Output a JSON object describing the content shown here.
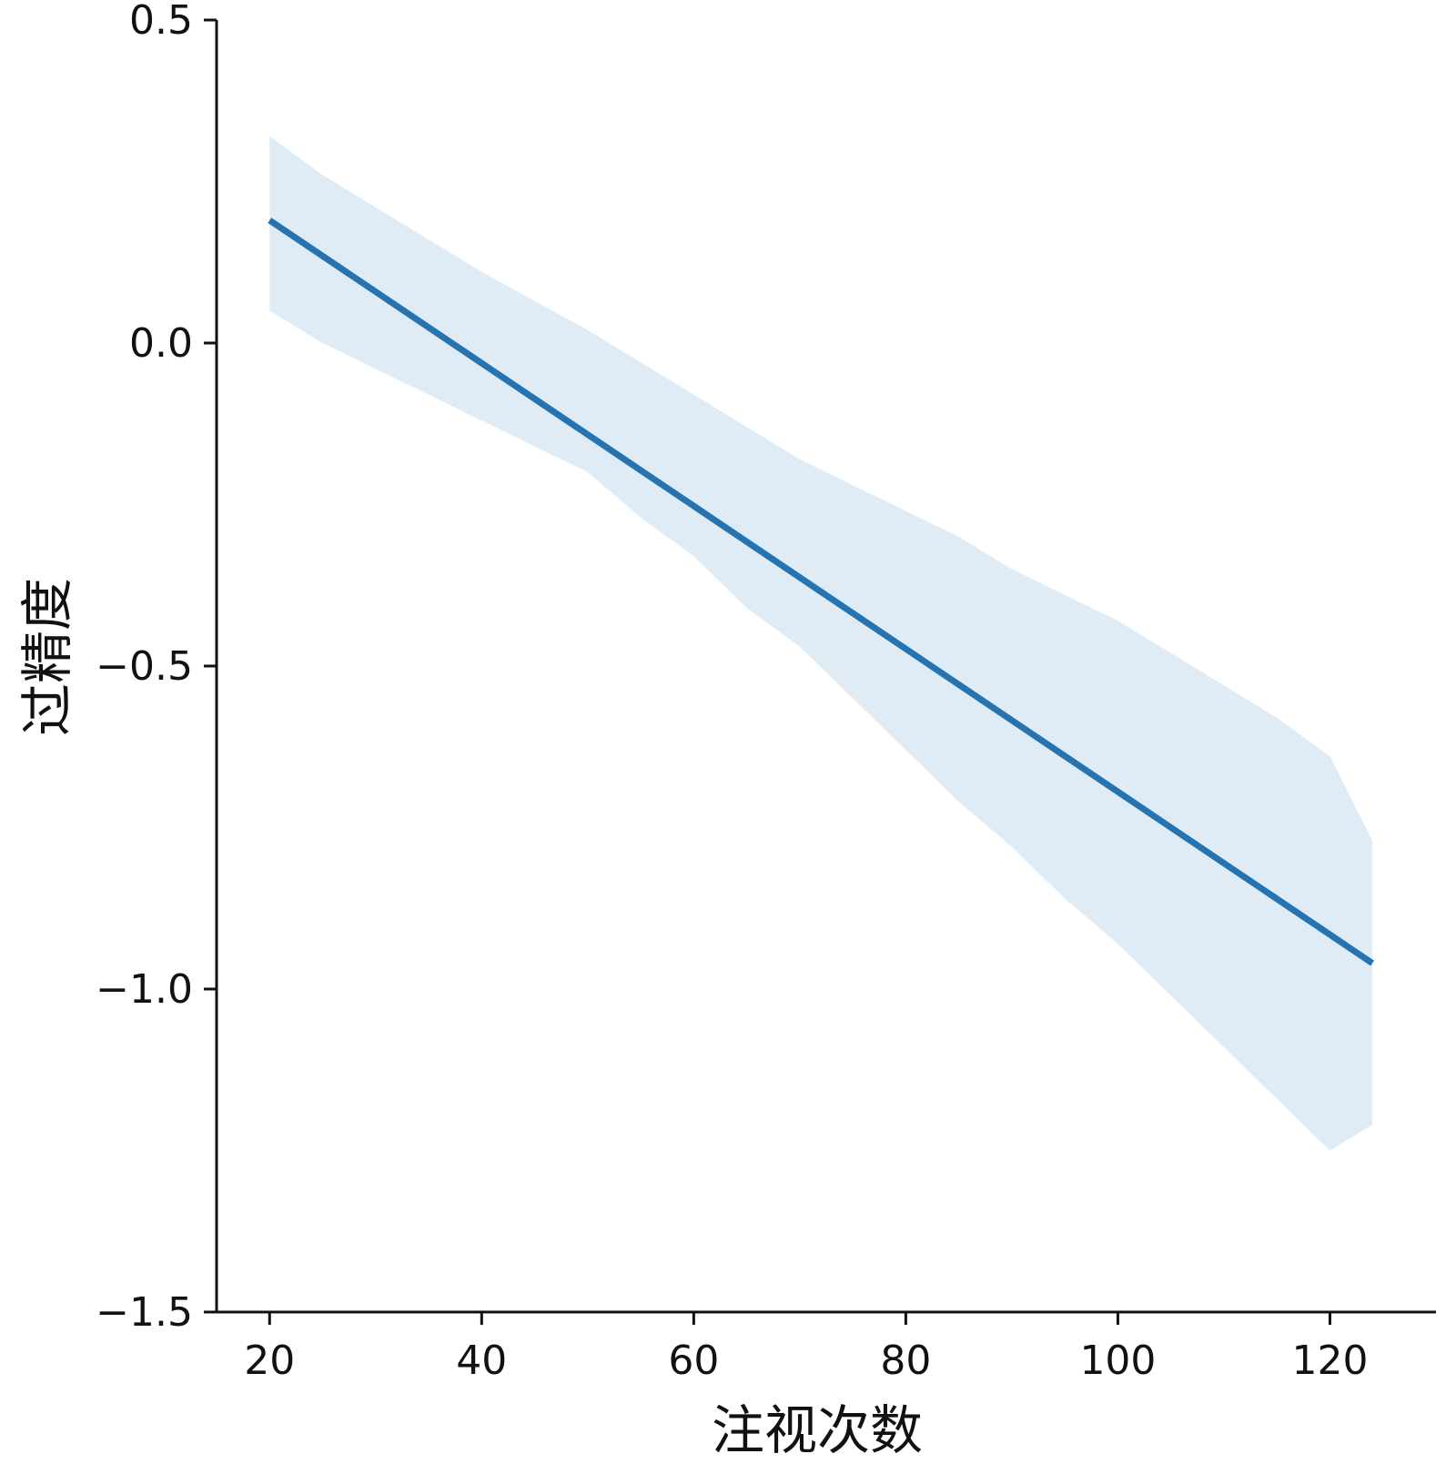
{
  "chart_data": {
    "type": "line",
    "title": "",
    "xlabel": "注视次数",
    "ylabel": "过精度",
    "xlim": [
      15,
      130
    ],
    "ylim": [
      -1.5,
      0.5
    ],
    "x_ticks": [
      20,
      40,
      60,
      80,
      100,
      120
    ],
    "x_tick_labels": [
      "20",
      "40",
      "60",
      "80",
      "100",
      "120"
    ],
    "y_ticks": [
      0.5,
      0.0,
      -0.5,
      -1.0,
      -1.5
    ],
    "y_tick_labels": [
      "0.5",
      "0.0",
      "−0.5",
      "−1.0",
      "−1.5"
    ],
    "grid": false,
    "series": [
      {
        "x": [
          20,
          124
        ],
        "y": [
          0.19,
          -0.96
        ]
      }
    ],
    "confidence_band": {
      "x": [
        20,
        25,
        30,
        35,
        40,
        45,
        50,
        55,
        60,
        65,
        70,
        75,
        80,
        85,
        90,
        95,
        100,
        105,
        110,
        115,
        120,
        124
      ],
      "upper": [
        0.32,
        0.26,
        0.21,
        0.16,
        0.11,
        0.065,
        0.02,
        -0.03,
        -0.08,
        -0.13,
        -0.18,
        -0.22,
        -0.26,
        -0.3,
        -0.35,
        -0.39,
        -0.43,
        -0.48,
        -0.53,
        -0.58,
        -0.64,
        -0.77
      ],
      "lower": [
        0.05,
        0.0,
        -0.04,
        -0.08,
        -0.12,
        -0.16,
        -0.2,
        -0.27,
        -0.33,
        -0.41,
        -0.47,
        -0.55,
        -0.63,
        -0.71,
        -0.78,
        -0.86,
        -0.93,
        -1.01,
        -1.09,
        -1.17,
        -1.25,
        -1.21
      ]
    },
    "colors": {
      "line": "#2673b2",
      "band": "#dfebf5",
      "axis": "#111111"
    }
  }
}
